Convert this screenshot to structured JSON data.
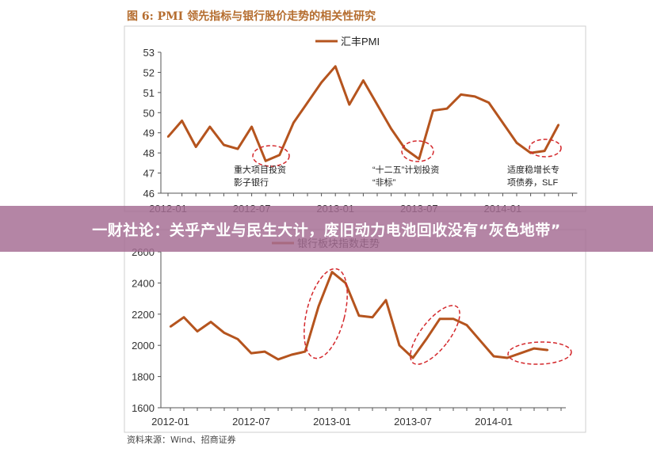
{
  "figure": {
    "title": "图 6: PMI 领先指标与银行股价走势的相关性研究",
    "source": "资料来源：Wind、招商证券"
  },
  "banner": {
    "text": "一财社论：关乎产业与民生大计，废旧动力电池回收没有“灰色地带”"
  },
  "colors": {
    "series": "#b5541e",
    "ellipse": "#d4282c",
    "axis": "#555555",
    "banner": "#a66e94"
  },
  "chart_data": [
    {
      "type": "line",
      "legend_position": "top-center",
      "ylim": [
        46,
        53
      ],
      "yticks": [
        46,
        47,
        48,
        49,
        50,
        51,
        52,
        53
      ],
      "xticks": [
        "2012-01",
        "2012-07",
        "2013-01",
        "2013-07",
        "2014-01"
      ],
      "grid": false,
      "series": [
        {
          "name": "汇丰PMI",
          "x": [
            "2012-01",
            "2012-02",
            "2012-03",
            "2012-04",
            "2012-05",
            "2012-06",
            "2012-07",
            "2012-08",
            "2012-09",
            "2012-10",
            "2012-11",
            "2012-12",
            "2013-01",
            "2013-02",
            "2013-03",
            "2013-04",
            "2013-05",
            "2013-06",
            "2013-07",
            "2013-08",
            "2013-09",
            "2013-10",
            "2013-11",
            "2013-12",
            "2014-01",
            "2014-02",
            "2014-03",
            "2014-04",
            "2014-05",
            "2014-06"
          ],
          "values": [
            48.8,
            49.6,
            48.3,
            49.3,
            48.4,
            48.2,
            49.3,
            47.6,
            47.9,
            49.5,
            50.5,
            51.5,
            52.3,
            50.4,
            51.6,
            50.4,
            49.2,
            48.2,
            47.7,
            50.1,
            50.2,
            50.9,
            50.8,
            50.5,
            49.5,
            48.5,
            48.0,
            48.1,
            49.4,
            null
          ],
          "annotations": [
            {
              "text": "重大项目投资影子银行",
              "near": "2012-08"
            },
            {
              "text": "“十二五”计划投资“非标”",
              "near": "2013-07"
            },
            {
              "text": "适度稳增长专项债券，SLF",
              "near": "2014-04"
            }
          ]
        }
      ]
    },
    {
      "type": "line",
      "ylim": [
        1600,
        2600
      ],
      "yticks": [
        1600,
        1800,
        2000,
        2200,
        2400,
        2600
      ],
      "xticks": [
        "2012-01",
        "2012-07",
        "2013-01",
        "2013-07",
        "2014-01"
      ],
      "grid": false,
      "series": [
        {
          "name": "银行板块指数走势",
          "x": [
            "2012-01",
            "2012-02",
            "2012-03",
            "2012-04",
            "2012-05",
            "2012-06",
            "2012-07",
            "2012-08",
            "2012-09",
            "2012-10",
            "2012-11",
            "2012-12",
            "2013-01",
            "2013-02",
            "2013-03",
            "2013-04",
            "2013-05",
            "2013-06",
            "2013-07",
            "2013-08",
            "2013-09",
            "2013-10",
            "2013-11",
            "2013-12",
            "2014-01",
            "2014-02",
            "2014-03",
            "2014-04",
            "2014-05",
            "2014-06"
          ],
          "values": [
            2120,
            2180,
            2090,
            2150,
            2080,
            2040,
            1950,
            1960,
            1910,
            1940,
            1960,
            2250,
            2470,
            2400,
            2190,
            2180,
            2290,
            2000,
            1920,
            2040,
            2170,
            2170,
            2130,
            2030,
            1930,
            1920,
            1950,
            1980,
            1970,
            null
          ]
        }
      ]
    }
  ]
}
